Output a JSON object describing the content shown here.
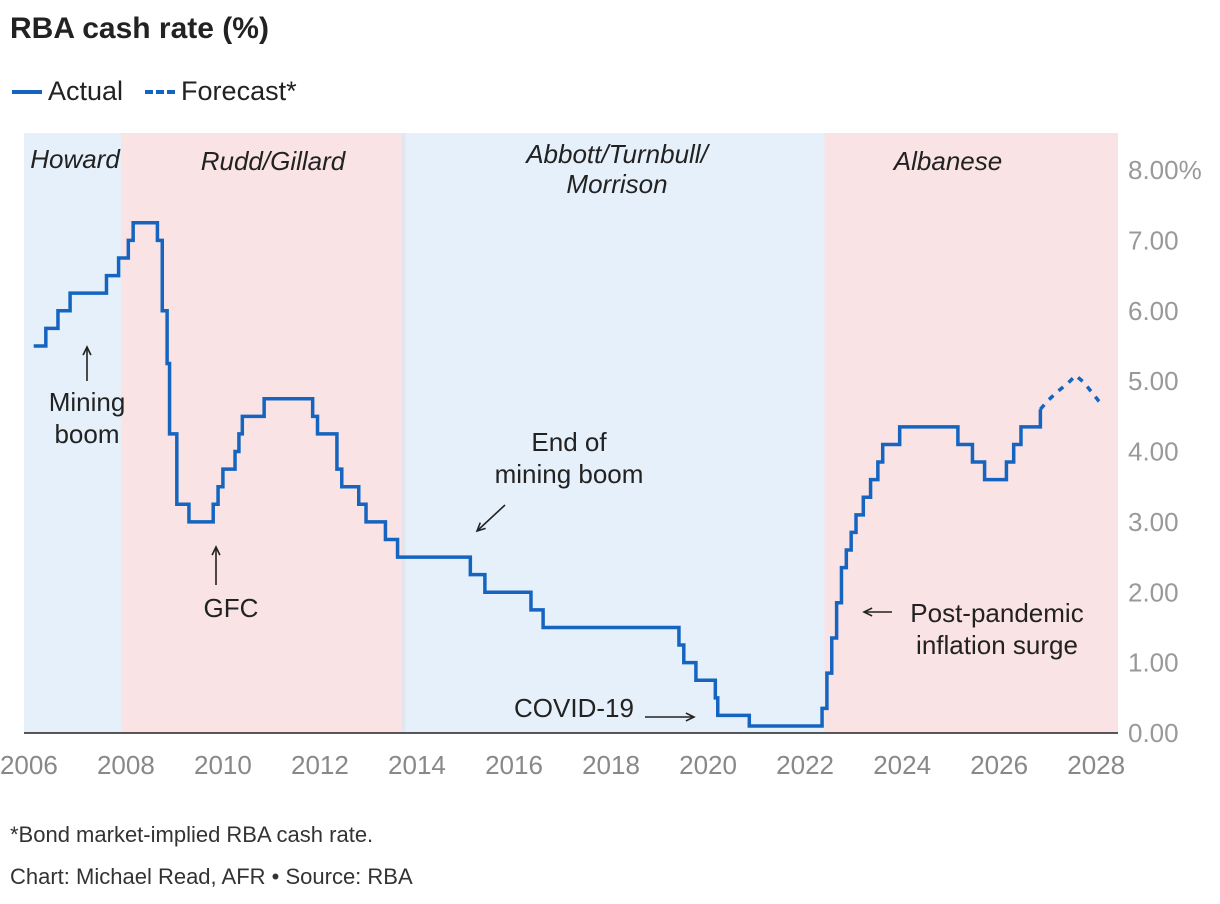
{
  "title": "RBA cash rate (%)",
  "legend": {
    "actual": "Actual",
    "forecast": "Forecast*"
  },
  "footnote": "*Bond market-implied RBA cash rate.",
  "credit": "Chart: Michael Read, AFR • Source: RBA",
  "colors": {
    "line": "#1565c0",
    "blue_band": "#e6f0fa",
    "red_band": "#f9e3e4",
    "axis_text": "#999999",
    "annotation": "#222222"
  },
  "chart_data": {
    "type": "line",
    "title": "RBA cash rate (%)",
    "xlabel": "",
    "ylabel": "",
    "xlim": [
      2005.9,
      2028.45
    ],
    "ylim": [
      0,
      8
    ],
    "x_ticks": [
      2006,
      2008,
      2010,
      2012,
      2014,
      2016,
      2018,
      2020,
      2022,
      2024,
      2026,
      2028
    ],
    "y_ticks": [
      {
        "value": 0,
        "label": "0.00"
      },
      {
        "value": 1,
        "label": "1.00"
      },
      {
        "value": 2,
        "label": "2.00"
      },
      {
        "value": 3,
        "label": "3.00"
      },
      {
        "value": 4,
        "label": "4.00"
      },
      {
        "value": 5,
        "label": "5.00"
      },
      {
        "value": 6,
        "label": "6.00"
      },
      {
        "value": 7,
        "label": "7.00"
      },
      {
        "value": 8,
        "label": "8.00%"
      }
    ],
    "periods": [
      {
        "name": "Howard",
        "start": 2005.9,
        "end": 2007.9,
        "color": "#e6f0fa",
        "lines": [
          "Howard"
        ]
      },
      {
        "name": "Rudd/Gillard",
        "start": 2007.9,
        "end": 2013.7,
        "color": "#f9e3e4",
        "lines": [
          "Rudd/Gillard"
        ]
      },
      {
        "name": "Abbott/Turnbull/Morrison",
        "start": 2013.7,
        "end": 2022.4,
        "color": "#e6f0fa",
        "lines": [
          "Abbott/Turnbull/",
          "Morrison"
        ]
      },
      {
        "name": "Albanese",
        "start": 2022.4,
        "end": 2028.45,
        "color": "#f9e3e4",
        "lines": [
          "Albanese"
        ]
      }
    ],
    "series": [
      {
        "name": "Actual",
        "step": true,
        "points": [
          [
            2006.1,
            5.5
          ],
          [
            2006.35,
            5.75
          ],
          [
            2006.6,
            6.0
          ],
          [
            2006.85,
            6.25
          ],
          [
            2007.6,
            6.5
          ],
          [
            2007.85,
            6.75
          ],
          [
            2008.05,
            7.0
          ],
          [
            2008.15,
            7.25
          ],
          [
            2008.65,
            7.0
          ],
          [
            2008.75,
            6.0
          ],
          [
            2008.85,
            5.25
          ],
          [
            2008.9,
            4.25
          ],
          [
            2009.05,
            3.25
          ],
          [
            2009.3,
            3.0
          ],
          [
            2009.8,
            3.25
          ],
          [
            2009.9,
            3.5
          ],
          [
            2010.0,
            3.75
          ],
          [
            2010.25,
            4.0
          ],
          [
            2010.33,
            4.25
          ],
          [
            2010.4,
            4.5
          ],
          [
            2010.85,
            4.75
          ],
          [
            2011.85,
            4.5
          ],
          [
            2011.95,
            4.25
          ],
          [
            2012.35,
            3.75
          ],
          [
            2012.45,
            3.5
          ],
          [
            2012.8,
            3.25
          ],
          [
            2012.95,
            3.0
          ],
          [
            2013.35,
            2.75
          ],
          [
            2013.6,
            2.5
          ],
          [
            2015.1,
            2.25
          ],
          [
            2015.4,
            2.0
          ],
          [
            2016.35,
            1.75
          ],
          [
            2016.6,
            1.5
          ],
          [
            2019.4,
            1.25
          ],
          [
            2019.5,
            1.0
          ],
          [
            2019.75,
            0.75
          ],
          [
            2020.15,
            0.5
          ],
          [
            2020.2,
            0.25
          ],
          [
            2020.85,
            0.1
          ],
          [
            2022.35,
            0.35
          ],
          [
            2022.45,
            0.85
          ],
          [
            2022.55,
            1.35
          ],
          [
            2022.65,
            1.85
          ],
          [
            2022.75,
            2.35
          ],
          [
            2022.85,
            2.6
          ],
          [
            2022.95,
            2.85
          ],
          [
            2023.05,
            3.1
          ],
          [
            2023.2,
            3.35
          ],
          [
            2023.35,
            3.6
          ],
          [
            2023.5,
            3.85
          ],
          [
            2023.6,
            4.1
          ],
          [
            2023.95,
            4.35
          ],
          [
            2025.15,
            4.1
          ],
          [
            2025.45,
            3.85
          ],
          [
            2025.7,
            3.6
          ],
          [
            2026.15,
            3.85
          ],
          [
            2026.3,
            4.1
          ],
          [
            2026.45,
            4.35
          ],
          [
            2026.85,
            4.6
          ]
        ],
        "end_x": 2026.85
      },
      {
        "name": "Forecast*",
        "step": false,
        "points": [
          [
            2026.85,
            4.6
          ],
          [
            2027.0,
            4.72
          ],
          [
            2027.2,
            4.85
          ],
          [
            2027.4,
            4.96
          ],
          [
            2027.58,
            5.08
          ],
          [
            2027.75,
            4.98
          ],
          [
            2027.9,
            4.85
          ],
          [
            2028.05,
            4.72
          ],
          [
            2028.15,
            4.65
          ]
        ]
      }
    ],
    "annotations": [
      {
        "id": "mining-boom",
        "lines": [
          "Mining",
          "boom"
        ],
        "arrow": "up",
        "x": 2006.85,
        "y": 5.35
      },
      {
        "id": "gfc",
        "lines": [
          "GFC"
        ],
        "arrow": "up",
        "x": 2009.7,
        "y": 2.65
      },
      {
        "id": "end-mining-boom",
        "lines": [
          "End of",
          "mining boom"
        ],
        "arrow": "down-left",
        "x": 2015.0,
        "y": 2.85
      },
      {
        "id": "covid",
        "lines": [
          "COVID-19"
        ],
        "arrow": "right",
        "x": 2019.8,
        "y": 0.2
      },
      {
        "id": "post-pandemic",
        "lines": [
          "Post-pandemic",
          "inflation surge"
        ],
        "arrow": "left",
        "x": 2023.0,
        "y": 1.75
      }
    ]
  }
}
